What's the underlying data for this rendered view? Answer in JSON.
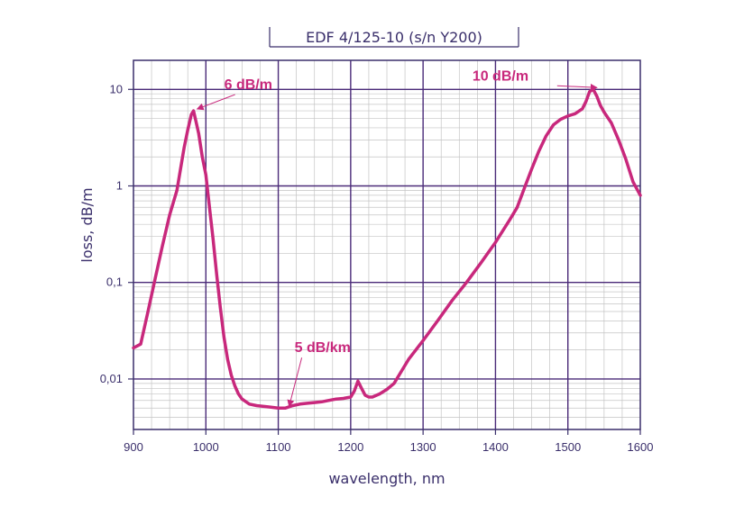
{
  "chart_data": {
    "type": "line",
    "title": "EDF 4/125-10 (s/n Y200)",
    "xlabel": "wavelength, nm",
    "ylabel": "loss, dB/m",
    "xlim": [
      900,
      1600
    ],
    "ylim": [
      0.003,
      20
    ],
    "yscale": "log",
    "grid": true,
    "x_ticks": [
      900,
      1000,
      1100,
      1200,
      1300,
      1400,
      1500,
      1600
    ],
    "x_tick_labels": [
      "900",
      "1000",
      "1100",
      "1200",
      "1300",
      "1400",
      "1500",
      "1600"
    ],
    "y_ticks": [
      0.01,
      0.1,
      1,
      10
    ],
    "y_tick_labels": [
      "0,01",
      "0,1",
      "1",
      "10"
    ],
    "colors": {
      "line": "#c8287c",
      "axis": "#3a2f6b",
      "grid_major": "#4a2a78",
      "grid_minor": "#c4c4c4"
    },
    "series": [
      {
        "x": [
          900,
          910,
          920,
          930,
          940,
          950,
          960,
          965,
          970,
          975,
          980,
          983,
          986,
          990,
          995,
          1000,
          1005,
          1010,
          1015,
          1020,
          1025,
          1030,
          1035,
          1040,
          1045,
          1050,
          1060,
          1070,
          1080,
          1090,
          1100,
          1110,
          1120,
          1130,
          1140,
          1150,
          1160,
          1170,
          1180,
          1190,
          1200,
          1205,
          1210,
          1215,
          1220,
          1225,
          1230,
          1240,
          1250,
          1260,
          1270,
          1280,
          1290,
          1300,
          1320,
          1340,
          1360,
          1380,
          1400,
          1420,
          1430,
          1440,
          1450,
          1460,
          1470,
          1480,
          1490,
          1500,
          1510,
          1520,
          1525,
          1530,
          1535,
          1540,
          1545,
          1550,
          1560,
          1570,
          1580,
          1590,
          1600
        ],
        "y": [
          0.021,
          0.023,
          0.05,
          0.11,
          0.24,
          0.5,
          0.9,
          1.5,
          2.5,
          3.8,
          5.5,
          6.0,
          4.8,
          3.5,
          2.0,
          1.3,
          0.6,
          0.28,
          0.12,
          0.055,
          0.027,
          0.016,
          0.011,
          0.0085,
          0.007,
          0.0062,
          0.0055,
          0.0053,
          0.0052,
          0.0051,
          0.005,
          0.005,
          0.0053,
          0.0055,
          0.0056,
          0.0057,
          0.0058,
          0.006,
          0.0062,
          0.0063,
          0.0065,
          0.0075,
          0.0095,
          0.008,
          0.0068,
          0.0065,
          0.0065,
          0.007,
          0.0078,
          0.009,
          0.012,
          0.016,
          0.02,
          0.025,
          0.04,
          0.065,
          0.1,
          0.16,
          0.26,
          0.45,
          0.6,
          0.95,
          1.5,
          2.3,
          3.3,
          4.3,
          4.9,
          5.3,
          5.6,
          6.3,
          7.5,
          9.5,
          10.0,
          8.5,
          6.8,
          5.8,
          4.5,
          3.0,
          1.9,
          1.1,
          0.8
        ]
      }
    ],
    "annotations": [
      {
        "text": "6 dB/m",
        "x": 983,
        "y": 6.0
      },
      {
        "text": "5 dB/km",
        "x": 1110,
        "y": 0.005
      },
      {
        "text": "10 dB/m",
        "x": 1535,
        "y": 10.0
      }
    ]
  }
}
